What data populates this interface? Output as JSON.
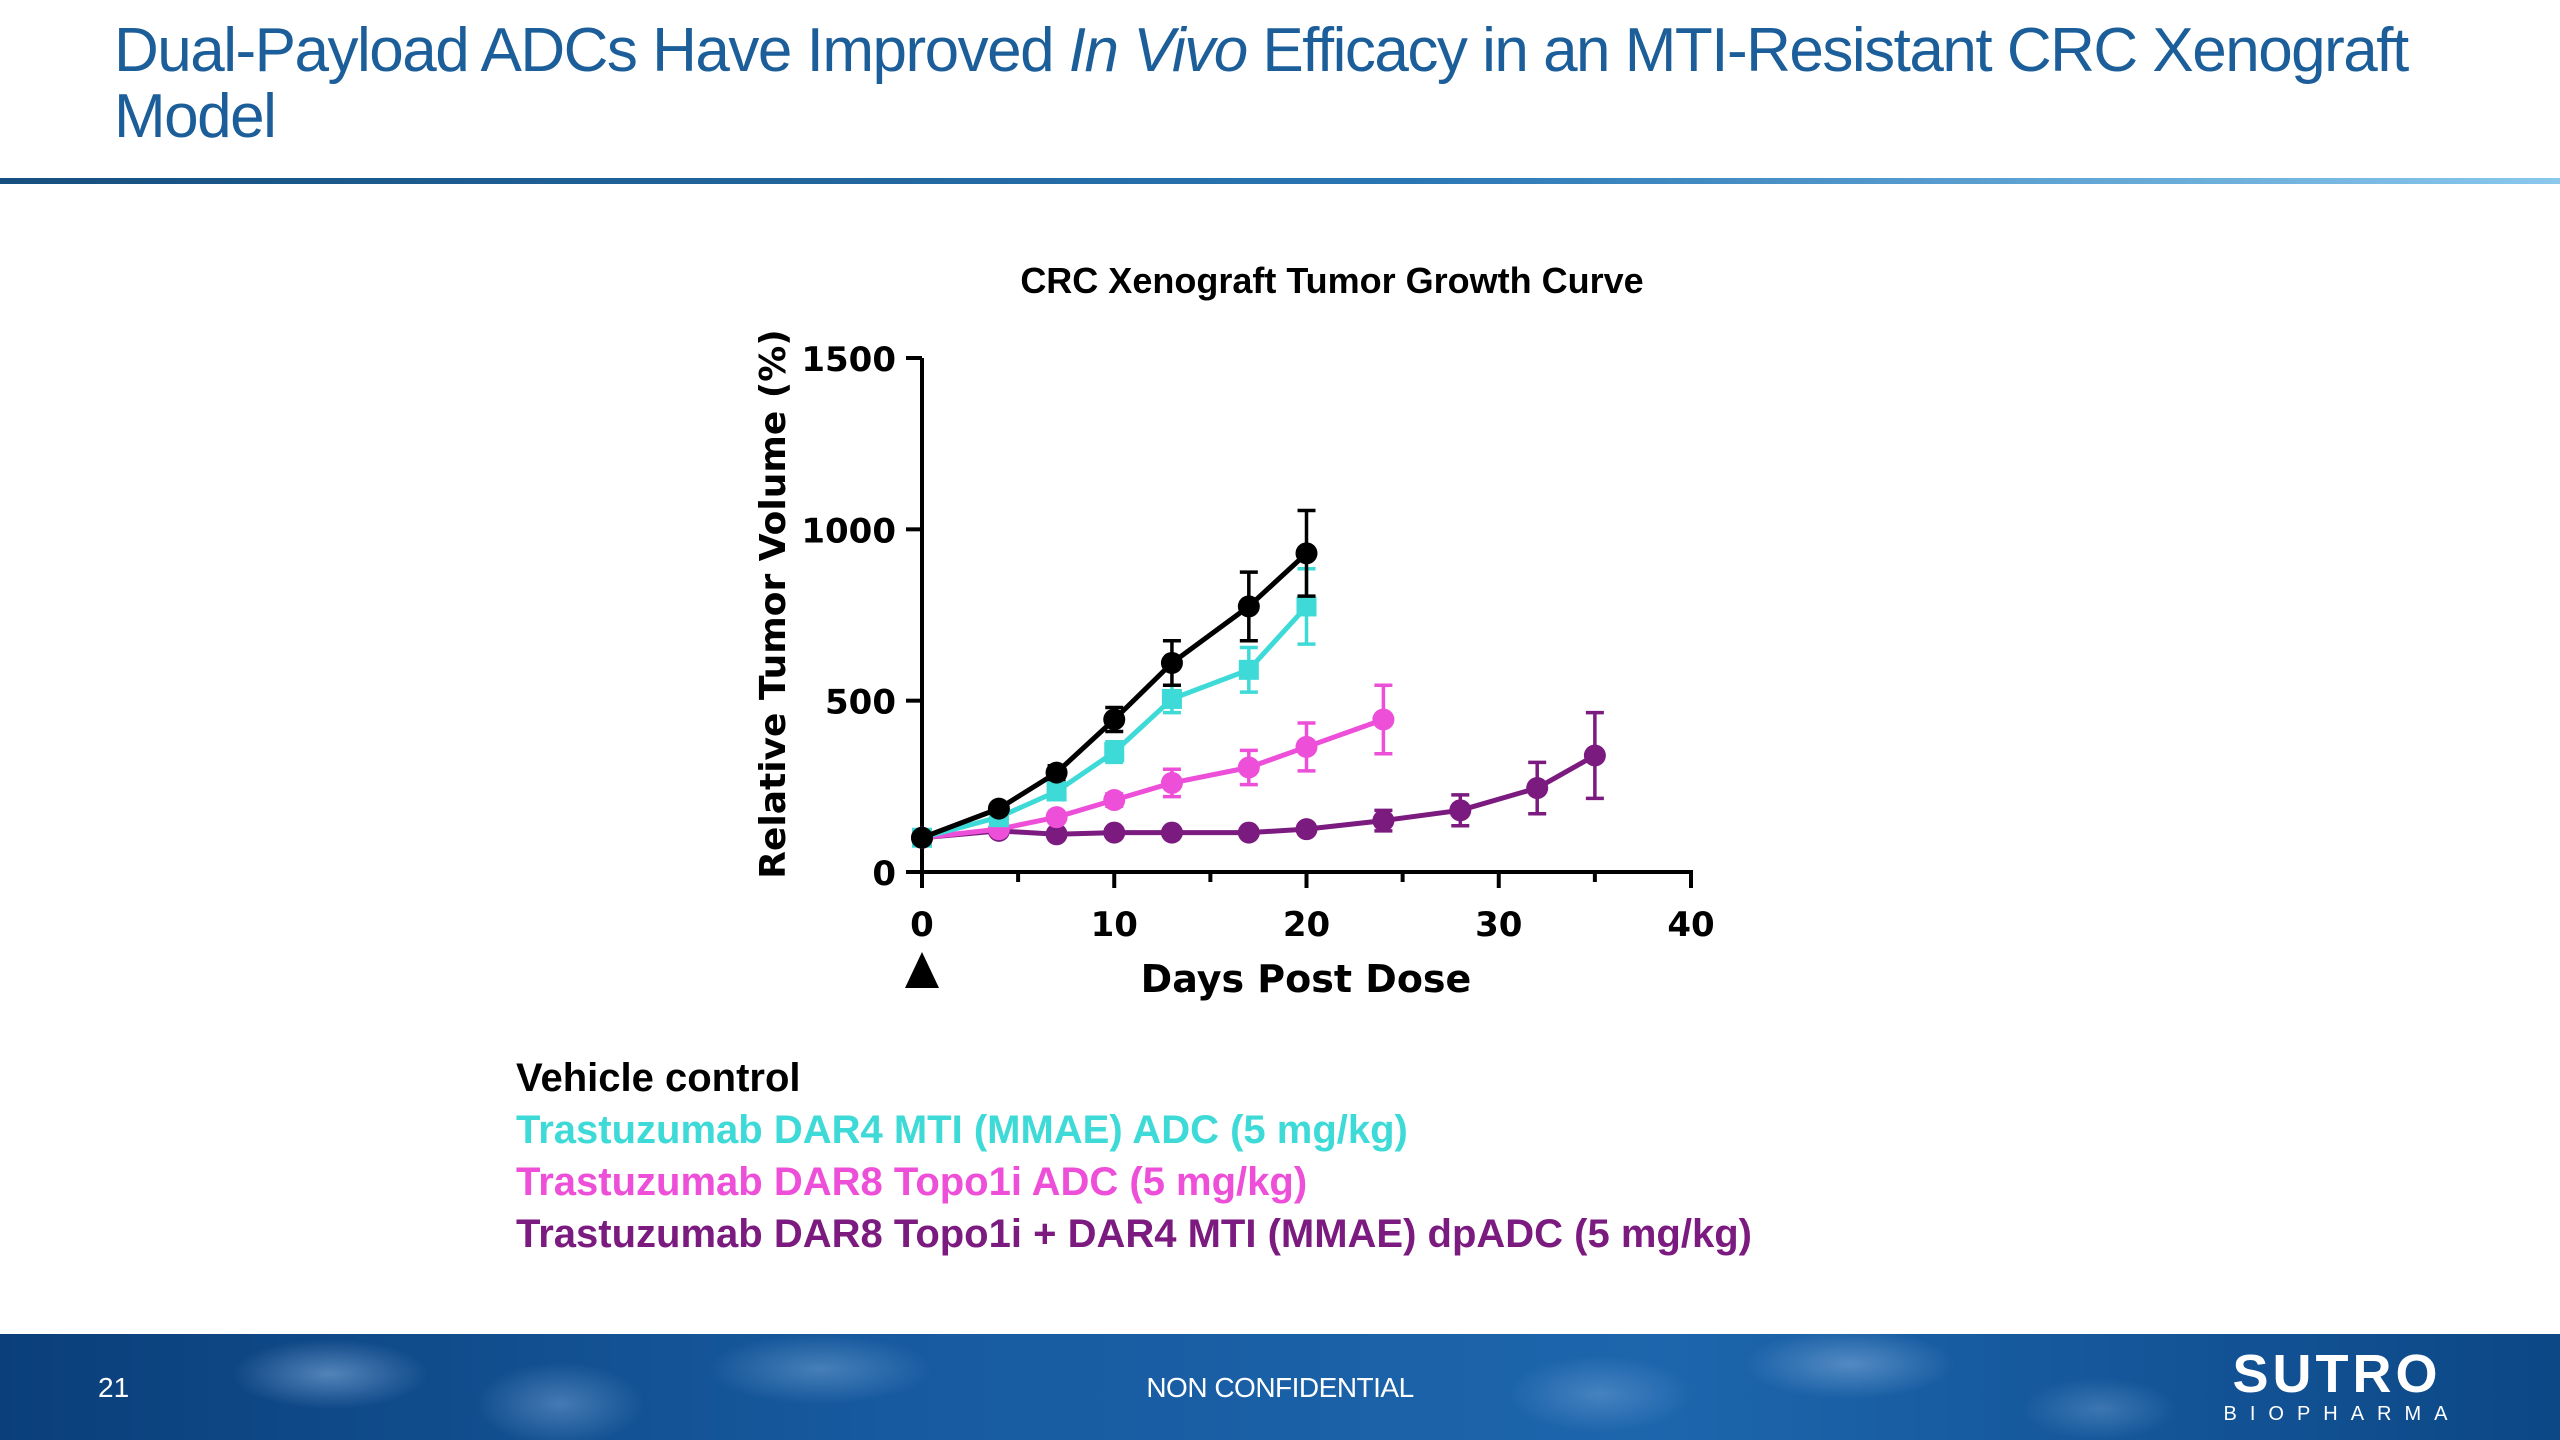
{
  "slide": {
    "title_pre": "Dual-Payload ADCs Have Improved ",
    "title_italic": "In Vivo",
    "title_post": " Efficacy in an MTI-Resistant CRC Xenograft Model"
  },
  "chart_data": {
    "type": "line",
    "title": "CRC Xenograft Tumor Growth Curve",
    "xlabel": "Days Post Dose",
    "ylabel": "Relative Tumor  Volume (%)",
    "xlim": [
      0,
      40
    ],
    "ylim": [
      0,
      1500
    ],
    "x_ticks": [
      0,
      10,
      20,
      30,
      40
    ],
    "y_ticks": [
      0,
      500,
      1000,
      1500
    ],
    "dose_marker_day": 0,
    "grid": false,
    "series": [
      {
        "name": "Vehicle control",
        "color": "#000000",
        "marker": "circle",
        "x": [
          0,
          4,
          7,
          10,
          13,
          17,
          20
        ],
        "y": [
          100,
          185,
          290,
          445,
          610,
          775,
          930
        ],
        "err": [
          5,
          12,
          20,
          35,
          65,
          100,
          125
        ]
      },
      {
        "name": "Trastuzumab DAR4 MTI (MMAE) ADC (5 mg/kg)",
        "color": "#3ddad7",
        "marker": "square",
        "x": [
          0,
          4,
          7,
          10,
          13,
          17,
          20
        ],
        "y": [
          100,
          160,
          235,
          350,
          505,
          590,
          775
        ],
        "err": [
          5,
          10,
          15,
          30,
          40,
          65,
          110
        ]
      },
      {
        "name": "Trastuzumab DAR8 Topo1i ADC (5 mg/kg)",
        "color": "#ed4fd9",
        "marker": "circle",
        "x": [
          0,
          4,
          7,
          10,
          13,
          17,
          20,
          24
        ],
        "y": [
          100,
          125,
          160,
          210,
          260,
          305,
          365,
          445
        ],
        "err": [
          5,
          8,
          12,
          18,
          40,
          50,
          70,
          100
        ]
      },
      {
        "name": "Trastuzumab DAR8 Topo1i + DAR4 MTI (MMAE) dpADC (5 mg/kg)",
        "color": "#7b1a7f",
        "marker": "circle",
        "x": [
          0,
          4,
          7,
          10,
          13,
          17,
          20,
          24,
          28,
          32,
          35
        ],
        "y": [
          100,
          120,
          110,
          115,
          115,
          115,
          125,
          150,
          180,
          245,
          340
        ],
        "err": [
          4,
          8,
          8,
          8,
          8,
          8,
          10,
          30,
          45,
          75,
          125
        ]
      }
    ]
  },
  "legend": {
    "entries": [
      {
        "label": "Vehicle control",
        "color": "#000000"
      },
      {
        "label": "Trastuzumab DAR4 MTI (MMAE) ADC (5 mg/kg)",
        "color": "#3ddad7"
      },
      {
        "label": "Trastuzumab DAR8 Topo1i ADC (5 mg/kg)",
        "color": "#ed4fd9"
      },
      {
        "label": "Trastuzumab DAR8 Topo1i + DAR4 MTI (MMAE) dpADC (5 mg/kg)",
        "color": "#7b1a7f"
      }
    ]
  },
  "footer": {
    "page_number": "21",
    "confidentiality": "NON CONFIDENTIAL",
    "logo_main": "SUTRO",
    "logo_sub": "BIOPHARMA"
  }
}
